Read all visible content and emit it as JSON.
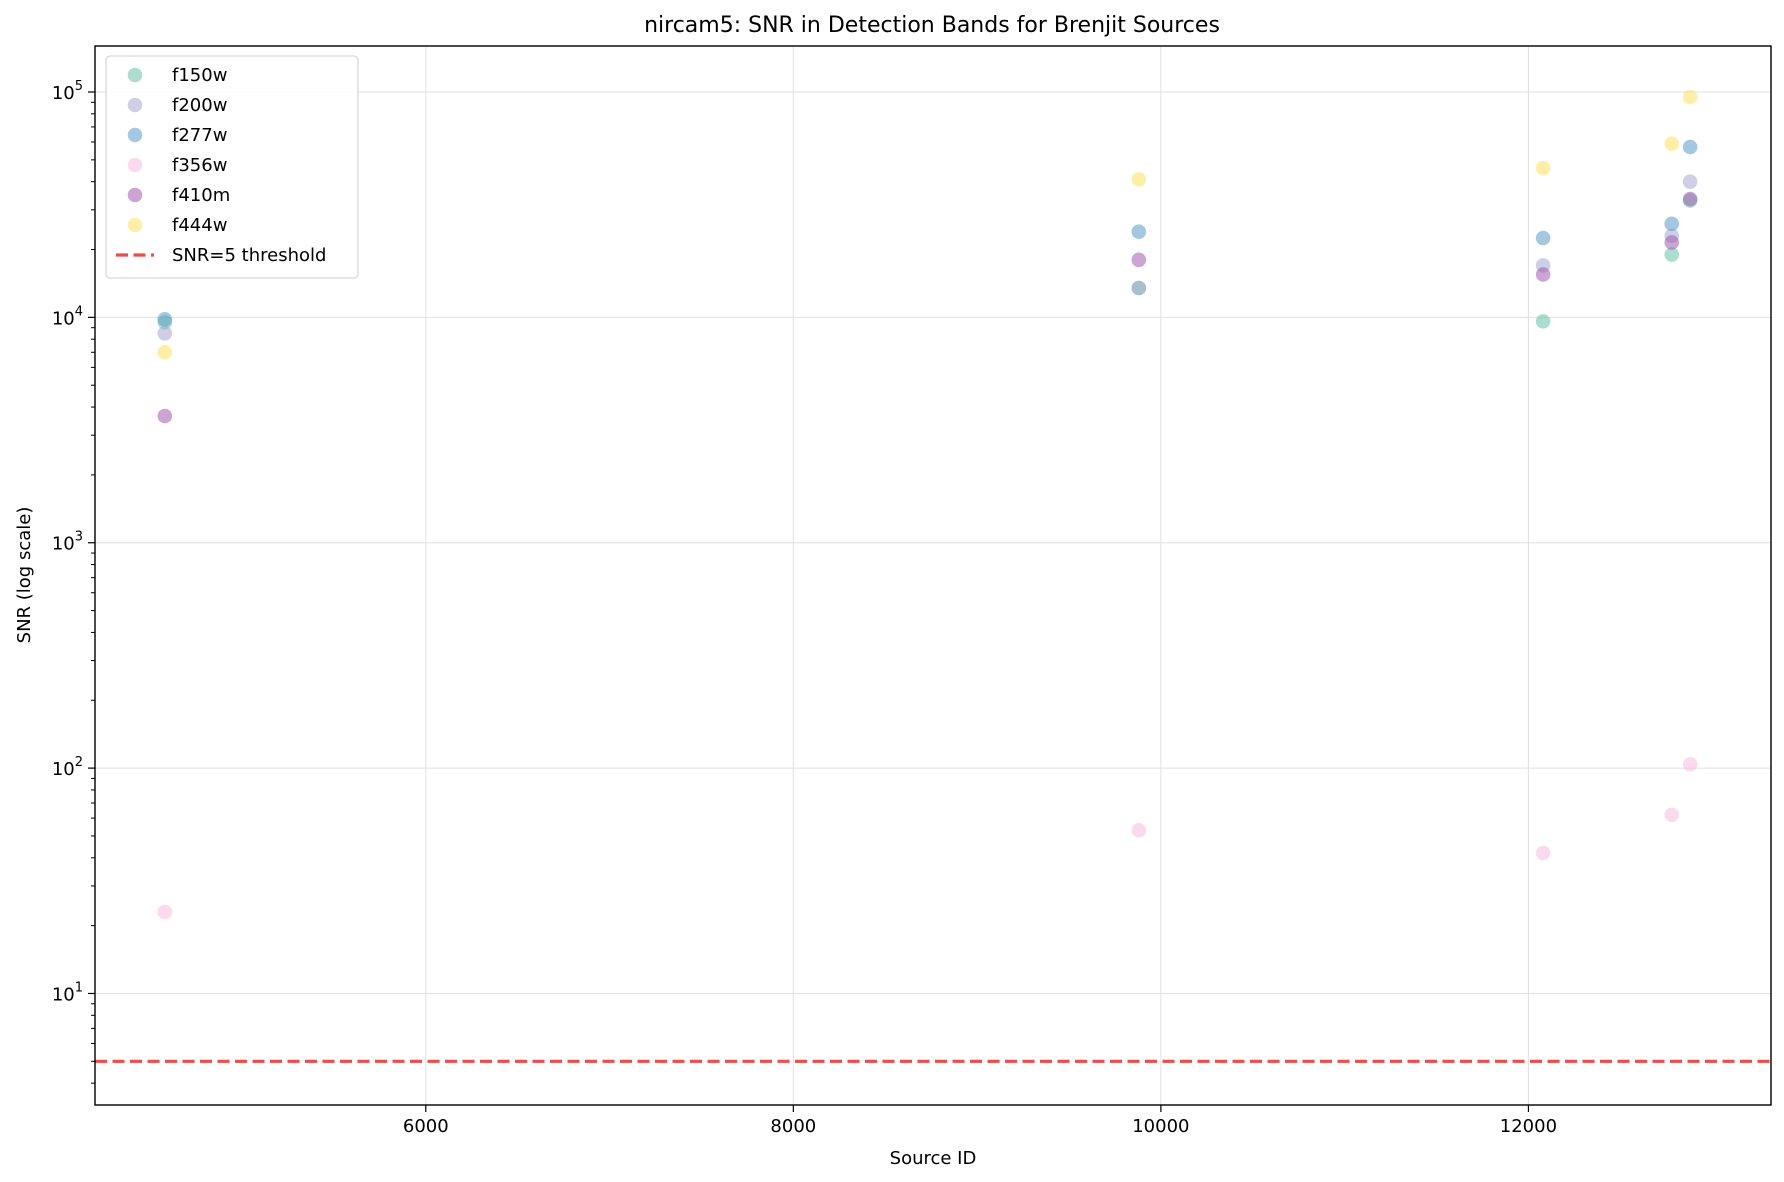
{
  "chart_data": {
    "type": "scatter",
    "title": "nircam5: SNR in Detection Bands for Brenjit Sources",
    "xlabel": "Source ID",
    "ylabel": "SNR (log scale)",
    "xlim": [
      4200,
      13320
    ],
    "ylim": [
      3.2,
      160000
    ],
    "yscale": "log",
    "grid": true,
    "legend_position": "top-left",
    "x_ticks": [
      6000,
      8000,
      10000,
      12000
    ],
    "x_tick_labels": [
      "6000",
      "8000",
      "10000",
      "12000"
    ],
    "y_ticks": [
      10,
      100,
      1000,
      10000,
      100000
    ],
    "y_tick_labels": [
      {
        "base": "10",
        "exp": "1"
      },
      {
        "base": "10",
        "exp": "2"
      },
      {
        "base": "10",
        "exp": "3"
      },
      {
        "base": "10",
        "exp": "4"
      },
      {
        "base": "10",
        "exp": "5"
      }
    ],
    "series": [
      {
        "name": "f150w",
        "color": "#66c2a5",
        "x": [
          4580,
          9880,
          12080,
          12780,
          12880
        ],
        "y": [
          9500,
          13500,
          9600,
          19000,
          33000
        ]
      },
      {
        "name": "f200w",
        "color": "#a6a6d2",
        "x": [
          4580,
          9880,
          12080,
          12780,
          12880
        ],
        "y": [
          8500,
          13500,
          17000,
          23000,
          40000
        ]
      },
      {
        "name": "f277w",
        "color": "#5b9bcb",
        "x": [
          4580,
          9880,
          12080,
          12780,
          12880
        ],
        "y": [
          9800,
          24000,
          22500,
          26000,
          57000
        ]
      },
      {
        "name": "f356w",
        "color": "#f9b9dc",
        "x": [
          4580,
          9880,
          12080,
          12780,
          12880
        ],
        "y": [
          23,
          53,
          42,
          62,
          104
        ]
      },
      {
        "name": "f410m",
        "color": "#a35bb0",
        "x": [
          4580,
          9880,
          12080,
          12780,
          12880
        ],
        "y": [
          3650,
          18000,
          15500,
          21500,
          33500
        ]
      },
      {
        "name": "f444w",
        "color": "#ffe15c",
        "x": [
          4580,
          9880,
          12080,
          12780,
          12880
        ],
        "y": [
          7000,
          41000,
          46000,
          59000,
          95000
        ]
      }
    ],
    "threshold": {
      "name": "SNR=5 threshold",
      "y": 5,
      "color": "#f04a4a",
      "style": "dashed"
    }
  }
}
